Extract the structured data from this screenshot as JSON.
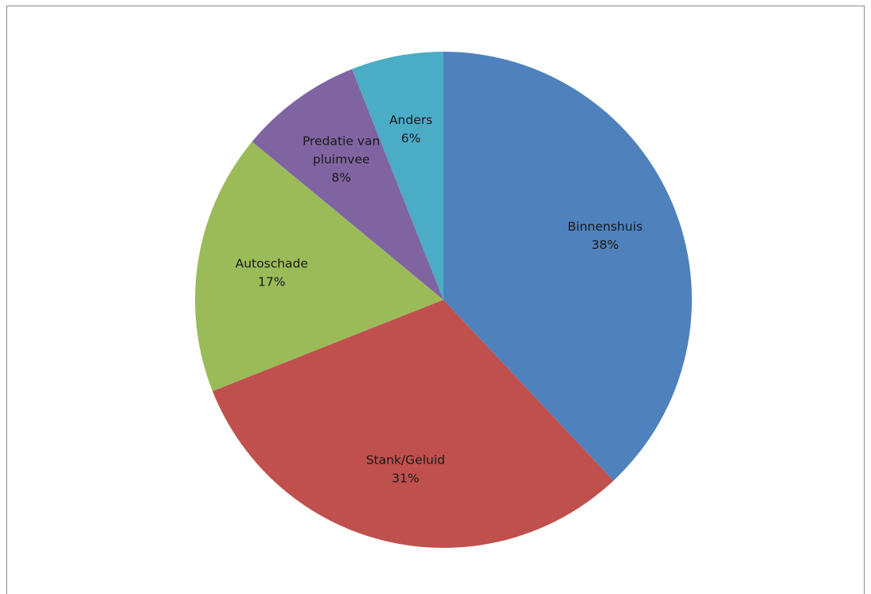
{
  "chart_data": {
    "type": "pie",
    "title": "",
    "start_angle_deg": 0,
    "direction": "clockwise",
    "slices": [
      {
        "label": "Binnenshuis",
        "value": 38,
        "value_label": "38%",
        "color": "#4F81BD"
      },
      {
        "label": "Stank/Geluid",
        "value": 31,
        "value_label": "31%",
        "color": "#C0504D"
      },
      {
        "label": "Autoschade",
        "value": 17,
        "value_label": "17%",
        "color": "#9BBB59"
      },
      {
        "label": "Predatie van pluimvee",
        "label_lines": [
          "Predatie van",
          "pluimvee"
        ],
        "value": 8,
        "value_label": "8%",
        "color": "#8064A2"
      },
      {
        "label": "Anders",
        "value": 6,
        "value_label": "6%",
        "color": "#4BACC6"
      }
    ],
    "legend": "none"
  }
}
